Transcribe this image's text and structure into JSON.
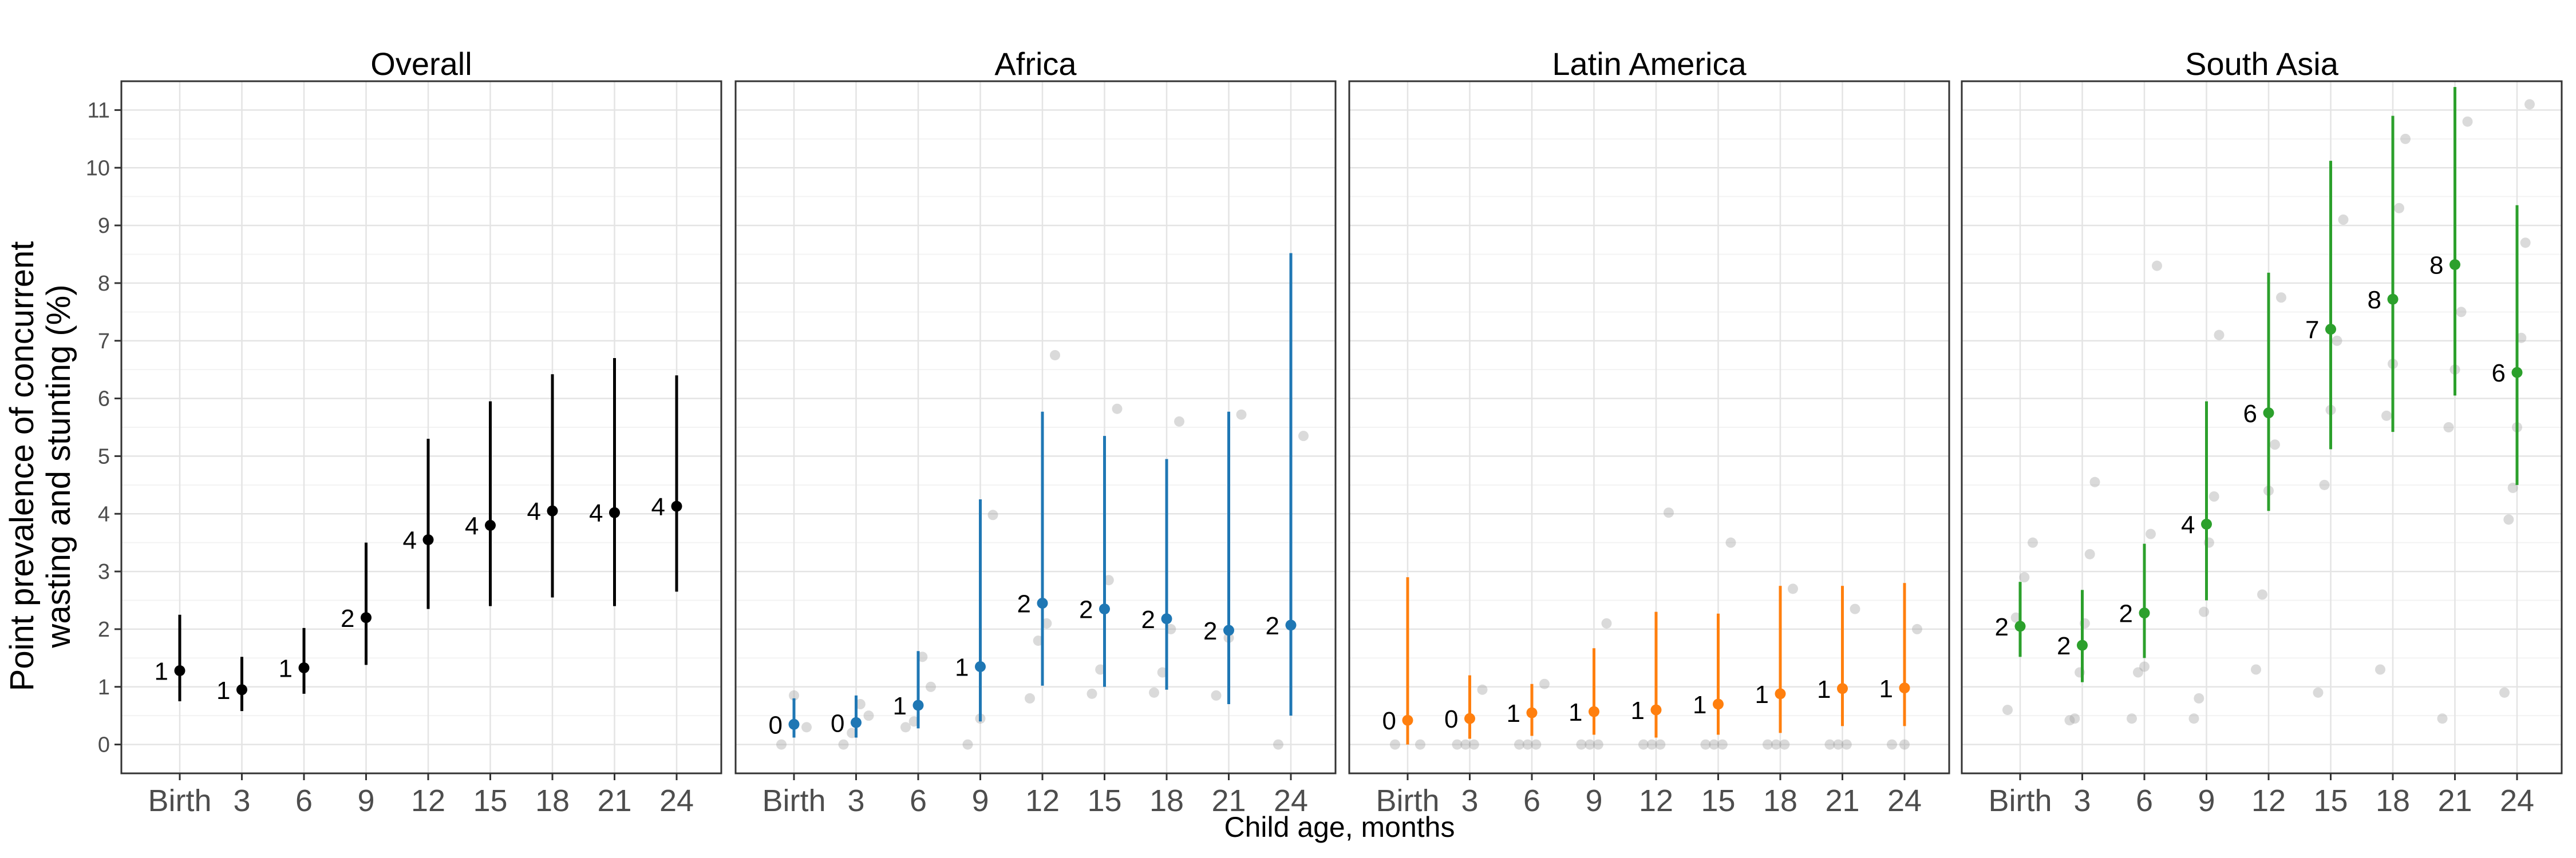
{
  "figure": {
    "ylabel_line1": "Point prevalence of concurrent",
    "ylabel_line2": "wasting and stunting (%)",
    "xlabel": "Child age, months"
  },
  "chart_data": {
    "type": "scatter",
    "x_categories": [
      "Birth",
      "3",
      "6",
      "9",
      "12",
      "15",
      "18",
      "21",
      "24"
    ],
    "y_ticks": [
      0,
      1,
      2,
      3,
      4,
      5,
      6,
      7,
      8,
      9,
      10,
      11
    ],
    "ylim": [
      -0.5,
      11.5
    ],
    "grid": true,
    "panels": [
      {
        "title": "Overall",
        "color": "#000000",
        "points": [
          {
            "est": 1.28,
            "lo": 0.75,
            "hi": 2.25,
            "label": "1"
          },
          {
            "est": 0.95,
            "lo": 0.58,
            "hi": 1.52,
            "label": "1"
          },
          {
            "est": 1.33,
            "lo": 0.88,
            "hi": 2.02,
            "label": "1"
          },
          {
            "est": 2.2,
            "lo": 1.38,
            "hi": 3.5,
            "label": "2"
          },
          {
            "est": 3.55,
            "lo": 2.35,
            "hi": 5.3,
            "label": "4"
          },
          {
            "est": 3.8,
            "lo": 2.4,
            "hi": 5.95,
            "label": "4"
          },
          {
            "est": 4.05,
            "lo": 2.55,
            "hi": 6.42,
            "label": "4"
          },
          {
            "est": 4.02,
            "lo": 2.4,
            "hi": 6.7,
            "label": "4"
          },
          {
            "est": 4.13,
            "lo": 2.65,
            "hi": 6.4,
            "label": "4"
          }
        ],
        "cohorts": []
      },
      {
        "title": "Africa",
        "color": "#1f77b4",
        "points": [
          {
            "est": 0.35,
            "lo": 0.12,
            "hi": 0.8,
            "label": "0"
          },
          {
            "est": 0.38,
            "lo": 0.12,
            "hi": 0.85,
            "label": "0"
          },
          {
            "est": 0.68,
            "lo": 0.28,
            "hi": 1.62,
            "label": "1"
          },
          {
            "est": 1.35,
            "lo": 0.4,
            "hi": 4.25,
            "label": "1"
          },
          {
            "est": 2.45,
            "lo": 1.02,
            "hi": 5.77,
            "label": "2"
          },
          {
            "est": 2.35,
            "lo": 1.0,
            "hi": 5.35,
            "label": "2"
          },
          {
            "est": 2.18,
            "lo": 0.95,
            "hi": 4.95,
            "label": "2"
          },
          {
            "est": 1.98,
            "lo": 0.7,
            "hi": 5.77,
            "label": "2"
          },
          {
            "est": 2.07,
            "lo": 0.5,
            "hi": 8.52,
            "label": "2"
          }
        ],
        "cohorts": [
          [
            0.0,
            0.85,
            0.3
          ],
          [
            0.0,
            0.2,
            0.7,
            0.5
          ],
          [
            0.3,
            0.4,
            1.52,
            1.0
          ],
          [
            0.0,
            0.45,
            3.98
          ],
          [
            0.8,
            1.8,
            2.1,
            6.75
          ],
          [
            0.88,
            1.3,
            2.85,
            5.82
          ],
          [
            0.9,
            1.25,
            2.0,
            5.6
          ],
          [
            0.85,
            1.85,
            5.72
          ],
          [
            0.0,
            5.35
          ]
        ]
      },
      {
        "title": "Latin America",
        "color": "#ff7f0e",
        "points": [
          {
            "est": 0.42,
            "lo": 0.0,
            "hi": 2.9,
            "label": "0"
          },
          {
            "est": 0.45,
            "lo": 0.1,
            "hi": 1.2,
            "label": "0"
          },
          {
            "est": 0.55,
            "lo": 0.15,
            "hi": 1.05,
            "label": "1"
          },
          {
            "est": 0.57,
            "lo": 0.17,
            "hi": 1.67,
            "label": "1"
          },
          {
            "est": 0.6,
            "lo": 0.12,
            "hi": 2.3,
            "label": "1"
          },
          {
            "est": 0.7,
            "lo": 0.17,
            "hi": 2.27,
            "label": "1"
          },
          {
            "est": 0.88,
            "lo": 0.2,
            "hi": 2.75,
            "label": "1"
          },
          {
            "est": 0.97,
            "lo": 0.32,
            "hi": 2.75,
            "label": "1"
          },
          {
            "est": 0.98,
            "lo": 0.32,
            "hi": 2.8,
            "label": "1"
          }
        ],
        "cohorts": [
          [
            0.0,
            0.0
          ],
          [
            0.0,
            0.0,
            0.0,
            0.95
          ],
          [
            0.0,
            0.0,
            0.0,
            1.05
          ],
          [
            0.0,
            0.0,
            0.0,
            2.1
          ],
          [
            0.0,
            0.0,
            0.0,
            4.02
          ],
          [
            0.0,
            0.0,
            0.0,
            3.5
          ],
          [
            0.0,
            0.0,
            0.0,
            2.7
          ],
          [
            0.0,
            0.0,
            0.0,
            2.35
          ],
          [
            0.0,
            0.0,
            2.0
          ]
        ]
      },
      {
        "title": "South Asia",
        "color": "#2ca02c",
        "points": [
          {
            "est": 2.05,
            "lo": 1.52,
            "hi": 2.82,
            "label": "2"
          },
          {
            "est": 1.72,
            "lo": 1.08,
            "hi": 2.68,
            "label": "2"
          },
          {
            "est": 2.28,
            "lo": 1.5,
            "hi": 3.48,
            "label": "2"
          },
          {
            "est": 3.82,
            "lo": 2.5,
            "hi": 5.95,
            "label": "4"
          },
          {
            "est": 5.75,
            "lo": 4.05,
            "hi": 8.18,
            "label": "6"
          },
          {
            "est": 7.2,
            "lo": 5.12,
            "hi": 10.12,
            "label": "7"
          },
          {
            "est": 7.72,
            "lo": 5.42,
            "hi": 10.9,
            "label": "8"
          },
          {
            "est": 8.32,
            "lo": 6.05,
            "hi": 11.4,
            "label": "8"
          },
          {
            "est": 6.45,
            "lo": 4.5,
            "hi": 9.35,
            "label": "6"
          }
        ],
        "cohorts": [
          [
            0.6,
            2.2,
            2.9,
            3.5
          ],
          [
            0.42,
            0.45,
            1.25,
            2.1,
            3.3,
            4.55
          ],
          [
            0.45,
            1.25,
            1.35,
            3.65,
            8.3
          ],
          [
            0.45,
            0.8,
            2.3,
            3.5,
            4.3,
            7.1
          ],
          [
            1.3,
            2.6,
            4.4,
            5.2,
            7.75
          ],
          [
            0.9,
            4.5,
            5.8,
            7.0,
            9.1
          ],
          [
            1.3,
            5.7,
            6.6,
            9.3,
            10.5
          ],
          [
            0.45,
            5.5,
            6.5,
            7.5,
            10.8
          ],
          [
            0.9,
            3.9,
            4.45,
            5.5,
            7.05,
            8.7,
            11.1
          ]
        ]
      }
    ]
  }
}
